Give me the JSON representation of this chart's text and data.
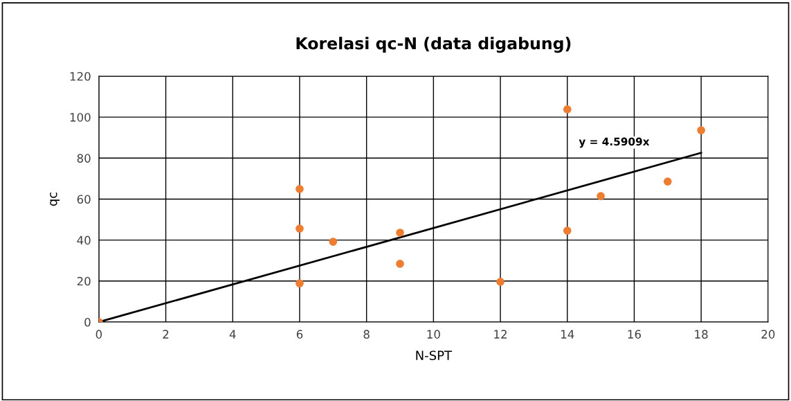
{
  "chart_data": {
    "type": "scatter",
    "title": "Korelasi qc-N (data digabung)",
    "xlabel": "N-SPT",
    "ylabel": "qc",
    "xlim": [
      0,
      20
    ],
    "xticks": [
      0,
      2,
      4,
      6,
      8,
      10,
      12,
      14,
      16,
      18,
      20
    ],
    "ylim": [
      0,
      120
    ],
    "yticks": [
      0,
      20,
      40,
      60,
      80,
      100,
      120
    ],
    "grid": true,
    "marker": "circle",
    "series": [
      {
        "color": "#ed7d31",
        "x": [
          0,
          6,
          6,
          6,
          7,
          9,
          9,
          12,
          14,
          14,
          15,
          17,
          18
        ],
        "values": [
          0,
          64.9,
          45.6,
          18.9,
          39.2,
          43.6,
          28.4,
          19.6,
          103.8,
          44.6,
          61.5,
          68.6,
          93.6
        ]
      },
      {
        "type": "line",
        "color": "#000000",
        "marker": "none",
        "x": [
          0,
          18
        ],
        "values": [
          0,
          82.6
        ]
      }
    ],
    "annotations": [
      "y = 4.5909x"
    ]
  }
}
